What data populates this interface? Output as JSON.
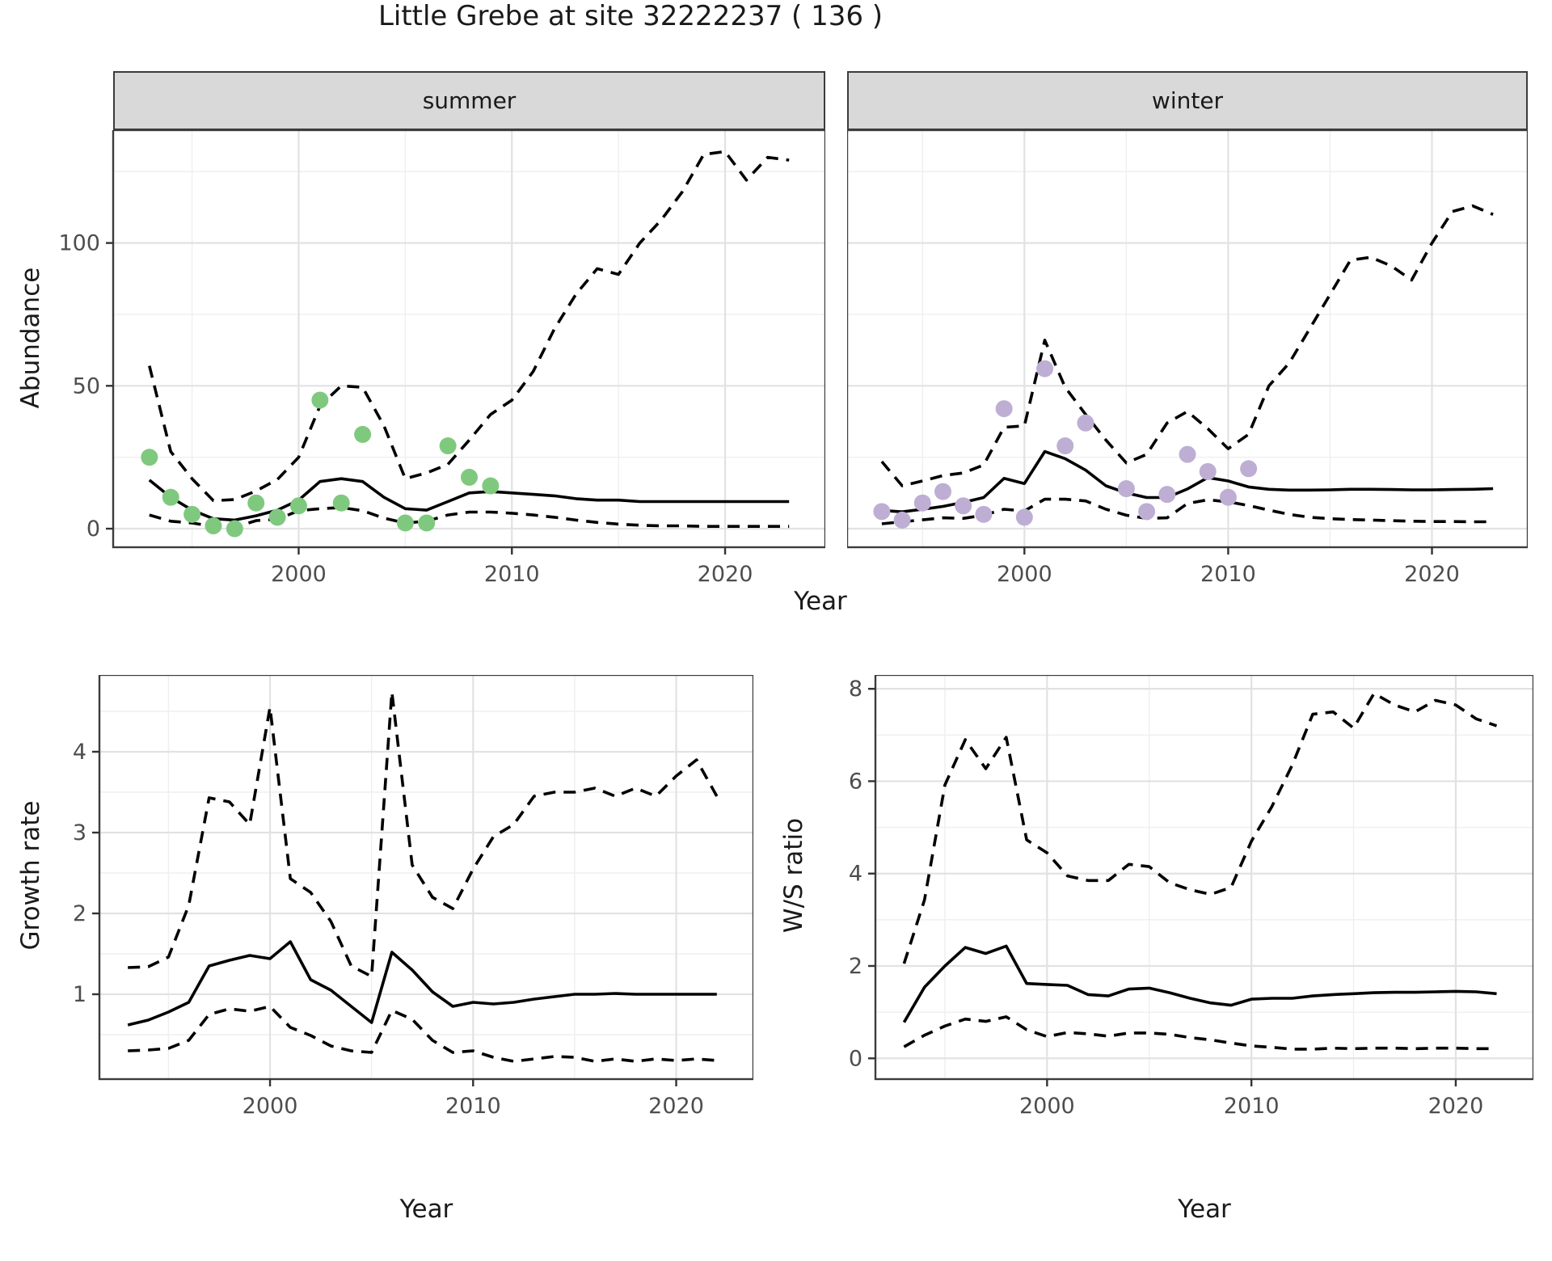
{
  "title": "Little Grebe at site 32222237 ( 136 )",
  "colors": {
    "summer_points": "#7FC97F",
    "winter_points": "#BEAED4",
    "line": "#000000",
    "grid_major": "#E2E2E2",
    "grid_minor": "#EFEFEF",
    "panel_border": "#3C3C3C",
    "strip_background": "#D9D9D9",
    "tick_text": "#4D4D4D"
  },
  "chart_data": [
    {
      "type": "line",
      "title": "summer",
      "xlabel": "Year",
      "ylabel": "Abundance",
      "xlim": [
        1991.3,
        2024.7
      ],
      "ylim": [
        -6.5,
        139.5
      ],
      "x_ticks": [
        2000,
        2010,
        2020
      ],
      "x_tick_labels": [
        "2000",
        "2010",
        "2020"
      ],
      "x_minor": [
        1995,
        2005,
        2015
      ],
      "y_ticks": [
        0,
        50,
        100
      ],
      "y_tick_labels": [
        "0",
        "50",
        "100"
      ],
      "y_minor": [
        25,
        75,
        125
      ],
      "legend": "none",
      "grid": true,
      "x": [
        1993,
        1994,
        1995,
        1996,
        1997,
        1998,
        1999,
        2000,
        2001,
        2002,
        2003,
        2004,
        2005,
        2006,
        2007,
        2008,
        2009,
        2010,
        2011,
        2012,
        2013,
        2014,
        2015,
        2016,
        2017,
        2018,
        2019,
        2020,
        2021,
        2022,
        2023
      ],
      "series": [
        {
          "name": "mean",
          "style": "solid",
          "values": [
            17,
            11,
            6.5,
            3.5,
            3,
            4.5,
            6.5,
            10,
            16.5,
            17.5,
            16.5,
            11,
            7,
            6.5,
            9.5,
            12.5,
            13,
            12.5,
            12,
            11.5,
            10.5,
            10,
            10,
            9.5,
            9.5,
            9.5,
            9.5,
            9.5,
            9.5,
            9.5,
            9.5
          ]
        },
        {
          "name": "lower_ci",
          "style": "dashed",
          "values": [
            4.8,
            2.6,
            2,
            0.8,
            0.5,
            2.8,
            3.3,
            6.3,
            7,
            7.4,
            6.3,
            3.7,
            2,
            2.6,
            4.8,
            5.8,
            5.8,
            5.4,
            4.8,
            4,
            3,
            2.2,
            1.6,
            1.2,
            1,
            1,
            0.8,
            0.8,
            0.8,
            0.8,
            0.8
          ]
        },
        {
          "name": "upper_ci",
          "style": "dashed",
          "values": [
            57,
            27,
            17.5,
            9.8,
            10.2,
            13.2,
            17.2,
            25,
            43,
            50,
            49.5,
            36,
            17.5,
            19.5,
            22.5,
            31,
            40,
            45,
            55,
            70,
            82,
            91,
            89,
            100,
            108,
            118,
            131,
            132,
            122,
            130,
            129
          ]
        }
      ],
      "points": {
        "name": "observed-summer",
        "color": "#7FC97F",
        "data": [
          [
            1993,
            25
          ],
          [
            1994,
            11
          ],
          [
            1995,
            5
          ],
          [
            1996,
            1
          ],
          [
            1997,
            0
          ],
          [
            1998,
            9
          ],
          [
            1999,
            4
          ],
          [
            2000,
            8
          ],
          [
            2001,
            45
          ],
          [
            2002,
            9
          ],
          [
            2003,
            33
          ],
          [
            2005,
            2
          ],
          [
            2006,
            2
          ],
          [
            2007,
            29
          ],
          [
            2008,
            18
          ],
          [
            2009,
            15
          ]
        ]
      }
    },
    {
      "type": "line",
      "title": "winter",
      "xlabel": "Year",
      "ylabel": "Abundance",
      "xlim": [
        1991.3,
        2024.7
      ],
      "ylim": [
        -6.5,
        139.5
      ],
      "x_ticks": [
        2000,
        2010,
        2020
      ],
      "x_tick_labels": [
        "2000",
        "2010",
        "2020"
      ],
      "x_minor": [
        1995,
        2005,
        2015
      ],
      "y_ticks": [
        0,
        50,
        100
      ],
      "y_tick_labels": [
        "0",
        "50",
        "100"
      ],
      "y_minor": [
        25,
        75,
        125
      ],
      "legend": "none",
      "grid": true,
      "x": [
        1993,
        1994,
        1995,
        1996,
        1997,
        1998,
        1999,
        2000,
        2001,
        2002,
        2003,
        2004,
        2005,
        2006,
        2007,
        2008,
        2009,
        2010,
        2011,
        2012,
        2013,
        2014,
        2015,
        2016,
        2017,
        2018,
        2019,
        2020,
        2021,
        2022,
        2023
      ],
      "series": [
        {
          "name": "mean",
          "style": "solid",
          "values": [
            6.4,
            5.9,
            6.8,
            7.8,
            9.2,
            10.9,
            17.6,
            15.8,
            27,
            24.5,
            20.5,
            15,
            12.5,
            10.9,
            10.9,
            13.9,
            17.9,
            16.7,
            14.6,
            13.8,
            13.5,
            13.5,
            13.6,
            13.8,
            13.8,
            13.7,
            13.6,
            13.6,
            13.7,
            13.8,
            14
          ]
        },
        {
          "name": "lower_ci",
          "style": "dashed",
          "values": [
            1.7,
            2.4,
            3.1,
            3.8,
            3.6,
            4.7,
            6.8,
            6.2,
            10.3,
            10.3,
            9.7,
            6.8,
            4.7,
            3.6,
            3.8,
            8.8,
            10.1,
            9.4,
            8.1,
            6.5,
            5,
            4,
            3.5,
            3.2,
            3,
            2.8,
            2.6,
            2.5,
            2.5,
            2.4,
            2.4
          ]
        },
        {
          "name": "upper_ci",
          "style": "dashed",
          "values": [
            23.5,
            15,
            16.7,
            18.6,
            19.5,
            22.3,
            35.5,
            36,
            66,
            49.5,
            40,
            31,
            23,
            26,
            37,
            41,
            35,
            28,
            33,
            50,
            58,
            70,
            82,
            94,
            95,
            92,
            87,
            100,
            111,
            113,
            110
          ]
        }
      ],
      "points": {
        "name": "observed-winter",
        "color": "#BEAED4",
        "data": [
          [
            1993,
            6
          ],
          [
            1994,
            3
          ],
          [
            1995,
            9
          ],
          [
            1996,
            13
          ],
          [
            1997,
            8
          ],
          [
            1998,
            5
          ],
          [
            1999,
            42
          ],
          [
            2000,
            4
          ],
          [
            2001,
            56
          ],
          [
            2002,
            29
          ],
          [
            2003,
            37
          ],
          [
            2005,
            14
          ],
          [
            2006,
            6
          ],
          [
            2007,
            12
          ],
          [
            2008,
            26
          ],
          [
            2009,
            20
          ],
          [
            2010,
            11
          ],
          [
            2011,
            21
          ]
        ]
      }
    },
    {
      "type": "line",
      "title": "",
      "xlabel": "Year",
      "ylabel": "Growth rate",
      "xlim": [
        1991.6,
        2023.8
      ],
      "ylim": [
        -0.05,
        4.95
      ],
      "x_ticks": [
        2000,
        2010,
        2020
      ],
      "x_tick_labels": [
        "2000",
        "2010",
        "2020"
      ],
      "x_minor": [
        1995,
        2005,
        2015
      ],
      "y_ticks": [
        1,
        2,
        3,
        4
      ],
      "y_tick_labels": [
        "1",
        "2",
        "3",
        "4"
      ],
      "y_minor": [
        0.5,
        1.5,
        2.5,
        3.5,
        4.5
      ],
      "legend": "none",
      "grid": true,
      "x": [
        1993,
        1994,
        1995,
        1996,
        1997,
        1998,
        1999,
        2000,
        2001,
        2002,
        2003,
        2004,
        2005,
        2006,
        2007,
        2008,
        2009,
        2010,
        2011,
        2012,
        2013,
        2014,
        2015,
        2016,
        2017,
        2018,
        2019,
        2020,
        2021,
        2022
      ],
      "series": [
        {
          "name": "mean",
          "style": "solid",
          "values": [
            0.62,
            0.68,
            0.78,
            0.9,
            1.35,
            1.42,
            1.48,
            1.44,
            1.65,
            1.18,
            1.05,
            0.85,
            0.65,
            1.52,
            1.3,
            1.03,
            0.85,
            0.9,
            0.88,
            0.9,
            0.94,
            0.97,
            1,
            1,
            1.01,
            1,
            1,
            1,
            1,
            1
          ]
        },
        {
          "name": "lower_ci",
          "style": "dashed",
          "values": [
            0.3,
            0.31,
            0.33,
            0.43,
            0.75,
            0.82,
            0.79,
            0.85,
            0.59,
            0.49,
            0.36,
            0.3,
            0.28,
            0.8,
            0.69,
            0.43,
            0.28,
            0.3,
            0.22,
            0.17,
            0.2,
            0.23,
            0.22,
            0.17,
            0.2,
            0.17,
            0.2,
            0.18,
            0.2,
            0.18
          ]
        },
        {
          "name": "upper_ci",
          "style": "dashed",
          "values": [
            1.33,
            1.34,
            1.46,
            2.1,
            3.43,
            3.38,
            3.1,
            4.55,
            2.43,
            2.26,
            1.9,
            1.35,
            1.22,
            4.74,
            2.6,
            2.2,
            2.06,
            2.55,
            2.95,
            3.1,
            3.45,
            3.5,
            3.5,
            3.55,
            3.45,
            3.55,
            3.45,
            3.7,
            3.9,
            3.45
          ]
        }
      ],
      "points": null
    },
    {
      "type": "line",
      "title": "",
      "xlabel": "Year",
      "ylabel": "W/S ratio",
      "xlim": [
        1991.6,
        2023.8
      ],
      "ylim": [
        -0.45,
        8.3
      ],
      "x_ticks": [
        2000,
        2010,
        2020
      ],
      "x_tick_labels": [
        "2000",
        "2010",
        "2020"
      ],
      "x_minor": [
        1995,
        2005,
        2015
      ],
      "y_ticks": [
        0,
        2,
        4,
        6,
        8
      ],
      "y_tick_labels": [
        "0",
        "2",
        "4",
        "6",
        "8"
      ],
      "y_minor": [
        1,
        3,
        5,
        7
      ],
      "legend": "none",
      "grid": true,
      "x": [
        1993,
        1994,
        1995,
        1996,
        1997,
        1998,
        1999,
        2000,
        2001,
        2002,
        2003,
        2004,
        2005,
        2006,
        2007,
        2008,
        2009,
        2010,
        2011,
        2012,
        2013,
        2014,
        2015,
        2016,
        2017,
        2018,
        2019,
        2020,
        2021,
        2022
      ],
      "series": [
        {
          "name": "mean",
          "style": "solid",
          "values": [
            0.78,
            1.54,
            2,
            2.4,
            2.27,
            2.43,
            1.62,
            1.6,
            1.58,
            1.38,
            1.35,
            1.5,
            1.52,
            1.42,
            1.3,
            1.2,
            1.15,
            1.28,
            1.3,
            1.3,
            1.35,
            1.38,
            1.4,
            1.42,
            1.43,
            1.43,
            1.44,
            1.45,
            1.44,
            1.4
          ]
        },
        {
          "name": "lower_ci",
          "style": "dashed",
          "values": [
            0.25,
            0.5,
            0.7,
            0.85,
            0.8,
            0.9,
            0.62,
            0.47,
            0.56,
            0.53,
            0.48,
            0.55,
            0.55,
            0.52,
            0.45,
            0.4,
            0.33,
            0.27,
            0.24,
            0.2,
            0.2,
            0.22,
            0.21,
            0.22,
            0.22,
            0.21,
            0.22,
            0.22,
            0.21,
            0.21
          ]
        },
        {
          "name": "upper_ci",
          "style": "dashed",
          "values": [
            2.05,
            3.43,
            5.92,
            6.9,
            6.27,
            6.95,
            4.73,
            4.45,
            3.95,
            3.85,
            3.85,
            4.2,
            4.15,
            3.8,
            3.65,
            3.55,
            3.7,
            4.7,
            5.45,
            6.35,
            7.45,
            7.5,
            7.15,
            7.9,
            7.65,
            7.5,
            7.75,
            7.65,
            7.35,
            7.2
          ]
        }
      ],
      "points": null
    }
  ]
}
